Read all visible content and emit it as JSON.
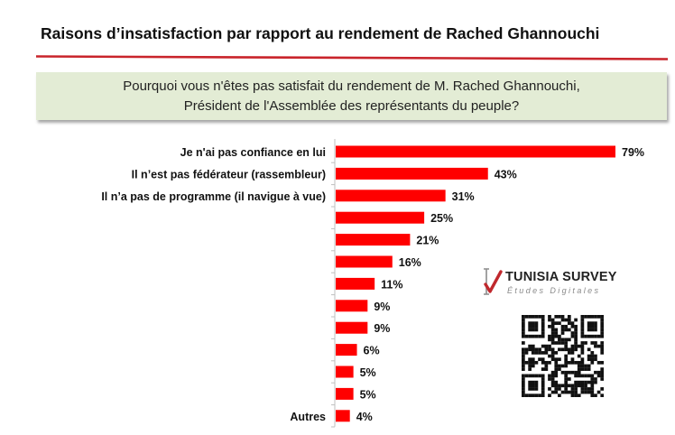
{
  "page": {
    "title": "Raisons d’insatisfaction  par rapport au rendement  de Rached Ghannouchi",
    "question_line1": "Pourquoi vous n'êtes pas satisfait du rendement de M. Rached Ghannouchi,",
    "question_line2": "Président de l'Assemblée des représentants du peuple?"
  },
  "brand": {
    "name": "TUNISIA SURVEY",
    "subtitle": "Études Digitales",
    "icon": "checkmark-logo-icon",
    "accent_color": "#c0282d"
  },
  "colors": {
    "bar": "#ff0000",
    "rule": "#c9242b",
    "axis": "#bfbfbf"
  },
  "chart_data": {
    "type": "bar",
    "orientation": "horizontal",
    "categories": [
      "Je n'ai pas confiance en lui",
      "Il n’est pas fédérateur (rassembleur)",
      "Il n’a pas de programme (il navigue à vue)",
      "",
      "",
      "",
      "",
      "",
      "",
      "",
      "",
      "",
      "Autres"
    ],
    "values": [
      79,
      43,
      31,
      25,
      21,
      16,
      11,
      9,
      9,
      6,
      5,
      5,
      4
    ],
    "data_labels": [
      "79%",
      "43%",
      "31%",
      "25%",
      "21%",
      "16%",
      "11%",
      "9%",
      "9%",
      "6%",
      "5%",
      "5%",
      "4%"
    ],
    "unit": "%",
    "xlim": [
      0,
      100
    ],
    "grid": false,
    "legend": "none"
  }
}
